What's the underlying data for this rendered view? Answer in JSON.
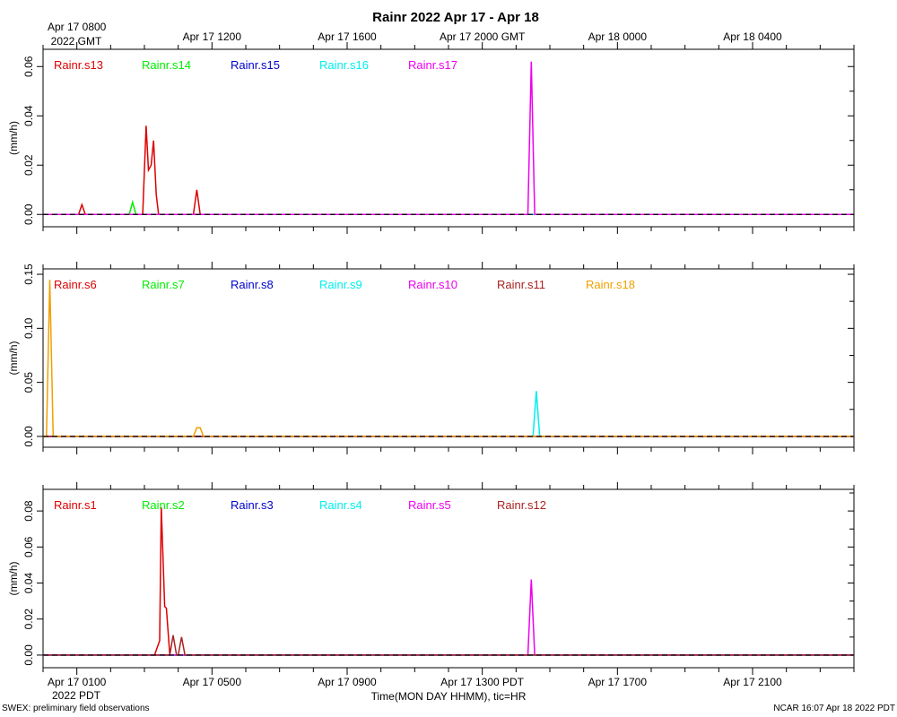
{
  "chart_data": {
    "type": "line",
    "title": "Rainr 2022 Apr 17 - Apr 18",
    "xlabel": "Time(MON DAY HHMM), tic=HR",
    "footer_left": "SWEX: preliminary field observations",
    "footer_right": "NCAR 16:07 Apr 18 2022 PDT",
    "x_hours_range": [
      -1,
      23
    ],
    "top_axis": {
      "ticks": [
        {
          "h": 0,
          "label": "Apr 17 0800"
        },
        {
          "h": 4,
          "label": "Apr 17 1200"
        },
        {
          "h": 8,
          "label": "Apr 17 1600"
        },
        {
          "h": 12,
          "label": "Apr 17 2000 GMT"
        },
        {
          "h": 16,
          "label": "Apr 18 0000"
        },
        {
          "h": 20,
          "label": "Apr 18 0400"
        }
      ],
      "year_label": "2022 GMT"
    },
    "bottom_axis": {
      "ticks": [
        {
          "h": 0,
          "label": "Apr 17 0100"
        },
        {
          "h": 4,
          "label": "Apr 17 0500"
        },
        {
          "h": 8,
          "label": "Apr 17 0900"
        },
        {
          "h": 12,
          "label": "Apr 17 1300 PDT"
        },
        {
          "h": 16,
          "label": "Apr 17 1700"
        },
        {
          "h": 20,
          "label": "Apr 17 2100"
        }
      ],
      "year_label": "2022 PDT"
    },
    "panels": [
      {
        "ylabel": "(mm/h)",
        "ylim": [
          -0.005,
          0.067
        ],
        "yticks": [
          0.0,
          0.02,
          0.04,
          0.06
        ],
        "yticklabels": [
          "0.00",
          "0.02",
          "0.04",
          "0.06"
        ],
        "series": [
          {
            "name": "Rainr.s13",
            "color": "#dd0000",
            "points": [
              [
                -1,
                0
              ],
              [
                0.05,
                0
              ],
              [
                0.15,
                0.004
              ],
              [
                0.25,
                0
              ],
              [
                1.95,
                0
              ],
              [
                2.05,
                0.036
              ],
              [
                2.12,
                0.018
              ],
              [
                2.2,
                0.02
              ],
              [
                2.27,
                0.03
              ],
              [
                2.35,
                0.008
              ],
              [
                2.42,
                0
              ],
              [
                3.45,
                0
              ],
              [
                3.55,
                0.01
              ],
              [
                3.65,
                0
              ],
              [
                23,
                0
              ]
            ]
          },
          {
            "name": "Rainr.s14",
            "color": "#00ee00",
            "points": [
              [
                -1,
                0
              ],
              [
                1.55,
                0
              ],
              [
                1.65,
                0.005
              ],
              [
                1.75,
                0
              ],
              [
                23,
                0
              ]
            ]
          },
          {
            "name": "Rainr.s15",
            "color": "#0000cc",
            "points": [
              [
                -1,
                0
              ],
              [
                23,
                0
              ]
            ]
          },
          {
            "name": "Rainr.s16",
            "color": "#00eeee",
            "points": [
              [
                -1,
                0
              ],
              [
                23,
                0
              ]
            ]
          },
          {
            "name": "Rainr.s17",
            "color": "#ee00ee",
            "points": [
              [
                -1,
                0
              ],
              [
                13.35,
                0
              ],
              [
                13.45,
                0.062
              ],
              [
                13.55,
                0
              ],
              [
                23,
                0
              ]
            ]
          }
        ]
      },
      {
        "ylabel": "(mm/h)",
        "ylim": [
          -0.01,
          0.155
        ],
        "yticks": [
          0.0,
          0.05,
          0.1,
          0.15
        ],
        "yticklabels": [
          "0.00",
          "0.05",
          "0.10",
          "0.15"
        ],
        "series": [
          {
            "name": "Rainr.s6",
            "color": "#dd0000",
            "points": [
              [
                -1,
                0
              ],
              [
                23,
                0
              ]
            ]
          },
          {
            "name": "Rainr.s7",
            "color": "#00ee00",
            "points": [
              [
                -1,
                0
              ],
              [
                23,
                0
              ]
            ]
          },
          {
            "name": "Rainr.s8",
            "color": "#0000cc",
            "points": [
              [
                -1,
                0
              ],
              [
                23,
                0
              ]
            ]
          },
          {
            "name": "Rainr.s9",
            "color": "#00eeee",
            "points": [
              [
                -1,
                0
              ],
              [
                13.5,
                0
              ],
              [
                13.6,
                0.042
              ],
              [
                13.7,
                0
              ],
              [
                23,
                0
              ]
            ]
          },
          {
            "name": "Rainr.s10",
            "color": "#ee00ee",
            "points": [
              [
                -1,
                0
              ],
              [
                23,
                0
              ]
            ]
          },
          {
            "name": "Rainr.s11",
            "color": "#aa2222",
            "points": [
              [
                -1,
                0
              ],
              [
                23,
                0
              ]
            ]
          },
          {
            "name": "Rainr.s18",
            "color": "#f0a000",
            "points": [
              [
                -1,
                0
              ],
              [
                -0.9,
                0
              ],
              [
                -0.8,
                0.145
              ],
              [
                -0.7,
                0
              ],
              [
                3.45,
                0
              ],
              [
                3.55,
                0.008
              ],
              [
                3.65,
                0.008
              ],
              [
                3.75,
                0
              ],
              [
                23,
                0
              ]
            ]
          }
        ]
      },
      {
        "ylabel": "(mm/h)",
        "ylim": [
          -0.007,
          0.092
        ],
        "yticks": [
          0.0,
          0.02,
          0.04,
          0.06,
          0.08
        ],
        "yticklabels": [
          "0.00",
          "0.02",
          "0.04",
          "0.06",
          "0.08"
        ],
        "series": [
          {
            "name": "Rainr.s1",
            "color": "#dd0000",
            "points": [
              [
                -1,
                0
              ],
              [
                2.3,
                0
              ],
              [
                2.45,
                0.008
              ],
              [
                2.5,
                0.082
              ],
              [
                2.6,
                0.027
              ],
              [
                2.65,
                0.026
              ],
              [
                2.75,
                0
              ],
              [
                23,
                0
              ]
            ]
          },
          {
            "name": "Rainr.s2",
            "color": "#00ee00",
            "points": [
              [
                -1,
                0
              ],
              [
                23,
                0
              ]
            ]
          },
          {
            "name": "Rainr.s3",
            "color": "#0000cc",
            "points": [
              [
                -1,
                0
              ],
              [
                23,
                0
              ]
            ]
          },
          {
            "name": "Rainr.s4",
            "color": "#00eeee",
            "points": [
              [
                -1,
                0
              ],
              [
                23,
                0
              ]
            ]
          },
          {
            "name": "Rainr.s5",
            "color": "#ee00ee",
            "points": [
              [
                -1,
                0
              ],
              [
                13.35,
                0
              ],
              [
                13.45,
                0.042
              ],
              [
                13.55,
                0
              ],
              [
                23,
                0
              ]
            ]
          },
          {
            "name": "Rainr.s12",
            "color": "#aa2222",
            "points": [
              [
                -1,
                0
              ],
              [
                2.75,
                0
              ],
              [
                2.85,
                0.011
              ],
              [
                2.95,
                0
              ],
              [
                3.0,
                0
              ],
              [
                3.1,
                0.01
              ],
              [
                3.2,
                0
              ],
              [
                23,
                0
              ]
            ]
          }
        ]
      }
    ]
  }
}
